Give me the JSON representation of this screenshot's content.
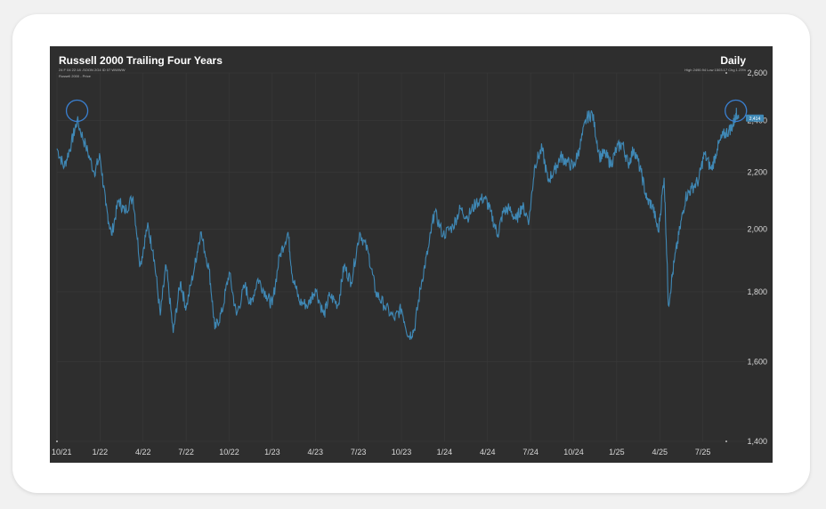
{
  "colors": {
    "background": "#2e2e2e",
    "line": "#3f88b5",
    "grid": "#3a3a3a",
    "highlight": "#3a7fd0"
  },
  "chart_data": {
    "type": "line",
    "title": "Russell 2000 Trailing Four Years",
    "frequency_label": "Daily",
    "header_info": "24 F 04 22:18 -SOON 2G4 ID 07 WWWW",
    "series_label": "Russell 2000 - Price",
    "right_info": "High 2490.94 Low 1503.17 Chg 1.23%",
    "last_value_tag": "2,414",
    "ylim": [
      1400,
      2600
    ],
    "yscale": "log",
    "yticks": [
      1400,
      1600,
      1800,
      2000,
      2200,
      2400,
      2600
    ],
    "ytick_labels": [
      "1,400",
      "1,600",
      "1,800",
      "2,000",
      "2,200",
      "2,400",
      "2,600"
    ],
    "xlim": [
      0,
      48
    ],
    "xticks": [
      {
        "label": "10/21",
        "pos": 0
      },
      {
        "label": "1/22",
        "pos": 3
      },
      {
        "label": "4/22",
        "pos": 6
      },
      {
        "label": "7/22",
        "pos": 9
      },
      {
        "label": "10/22",
        "pos": 12
      },
      {
        "label": "1/23",
        "pos": 15
      },
      {
        "label": "4/23",
        "pos": 18
      },
      {
        "label": "7/23",
        "pos": 21
      },
      {
        "label": "10/23",
        "pos": 24
      },
      {
        "label": "1/24",
        "pos": 27
      },
      {
        "label": "4/24",
        "pos": 30
      },
      {
        "label": "7/24",
        "pos": 33
      },
      {
        "label": "10/24",
        "pos": 36
      },
      {
        "label": "1/25",
        "pos": 39
      },
      {
        "label": "4/25",
        "pos": 42
      },
      {
        "label": "7/25",
        "pos": 45
      }
    ],
    "grid": true,
    "series": [
      {
        "x": [
          0,
          0.5,
          1,
          1.4,
          2,
          2.6,
          3,
          3.4,
          3.8,
          4.3,
          4.7,
          5.3,
          5.8,
          6.3,
          6.7,
          7.2,
          7.6,
          8.1,
          8.6,
          9,
          9.6,
          10,
          10.6,
          11,
          11.5,
          12,
          12.5,
          13.1,
          13.5,
          14,
          14.6,
          15,
          15.5,
          16.1,
          16.4,
          16.9,
          17.5,
          18,
          18.6,
          19,
          19.6,
          20,
          20.5,
          21.1,
          21.7,
          22.2,
          22.8,
          23.5,
          24,
          24.5,
          24.9,
          25.4,
          25.9,
          26.3,
          26.9,
          27.6,
          28.1,
          28.6,
          29.2,
          29.8,
          30.2,
          30.7,
          31.1,
          31.5,
          32,
          32.4,
          32.9,
          33.3,
          33.8,
          34.2,
          34.7,
          35.1,
          35.5,
          36,
          36.4,
          36.9,
          37.3,
          37.8,
          38.2,
          38.6,
          39,
          39.4,
          39.8,
          40.2,
          40.7,
          41.1,
          41.5,
          41.9,
          42.3,
          42.6,
          43,
          43.4,
          43.8,
          44.2,
          44.7,
          45.1,
          45.6,
          46,
          46.4,
          46.8,
          47.1,
          47.3,
          47.5
        ],
        "values": [
          2290,
          2220,
          2310,
          2400,
          2300,
          2200,
          2260,
          2080,
          1980,
          2100,
          2060,
          2110,
          1880,
          2010,
          1930,
          1730,
          1880,
          1680,
          1830,
          1750,
          1880,
          1990,
          1870,
          1690,
          1740,
          1860,
          1730,
          1820,
          1760,
          1840,
          1790,
          1760,
          1910,
          1990,
          1850,
          1770,
          1760,
          1810,
          1730,
          1790,
          1760,
          1880,
          1830,
          1990,
          1920,
          1800,
          1760,
          1720,
          1750,
          1670,
          1690,
          1830,
          1940,
          2060,
          1980,
          2010,
          2070,
          2040,
          2090,
          2110,
          2060,
          1980,
          2060,
          2070,
          2030,
          2080,
          2030,
          2230,
          2290,
          2170,
          2210,
          2260,
          2240,
          2220,
          2290,
          2410,
          2430,
          2260,
          2270,
          2230,
          2290,
          2310,
          2230,
          2290,
          2200,
          2100,
          2080,
          1990,
          2180,
          1760,
          1890,
          2000,
          2110,
          2140,
          2170,
          2270,
          2210,
          2290,
          2340,
          2360,
          2380,
          2430,
          2410
        ]
      }
    ],
    "annotations": [
      {
        "type": "circle",
        "x": 1.4,
        "y": 2440
      },
      {
        "type": "circle",
        "x": 47.3,
        "y": 2440
      }
    ]
  }
}
